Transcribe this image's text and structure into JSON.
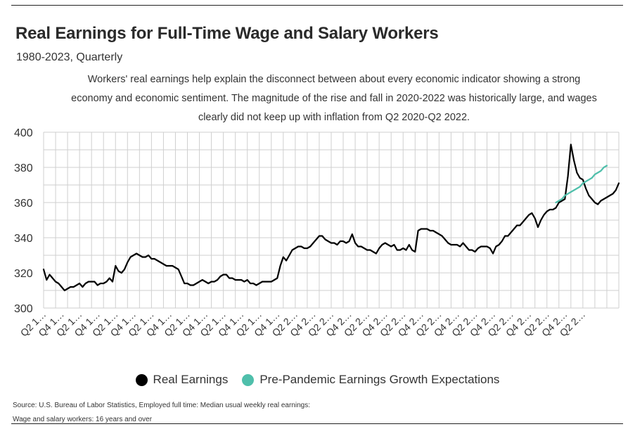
{
  "title": "Real Earnings for Full-Time Wage and Salary Workers",
  "subtitle": "1980-2023, Quarterly",
  "description": "Workers' real earnings help explain the disconnect between about every economic indicator showing a strong economy and economic sentiment. The magnitude of the rise and fall in 2020-2022 was historically large, and wages clearly did not keep up with inflation from Q2 2020-Q2 2022.",
  "source": "Source:  U.S. Bureau of Labor Statistics, Employed full time: Median usual weekly real earnings: Wage and salary workers: 16 years and over",
  "colors": {
    "real_earnings": "#000000",
    "expectations": "#4fbfab",
    "grid": "#cfcfcf"
  },
  "chart_data": {
    "type": "line",
    "x_start": "Q1 1979",
    "x_unit": "quarter",
    "ylim": [
      300,
      400
    ],
    "yticks": [
      300,
      320,
      340,
      360,
      380,
      400
    ],
    "x_tick_labels": [
      "Q2 1…",
      "Q4 1…",
      "Q2 1…",
      "Q4 1…",
      "Q2 1…",
      "Q4 1…",
      "Q2 1…",
      "Q4 1…",
      "Q2 1…",
      "Q4 1…",
      "Q2 1…",
      "Q4 1…",
      "Q2 1…",
      "Q4 1…",
      "Q2 2…",
      "Q4 2…",
      "Q2 2…",
      "Q4 2…",
      "Q2 2…",
      "Q4 2…",
      "Q2 2…",
      "Q4 2…",
      "Q2 2…",
      "Q4 2…",
      "Q2 2…",
      "Q4 2…",
      "Q2 2…",
      "Q4 2…",
      "Q2 2…",
      "Q4 2…",
      "Q2 2…"
    ],
    "grid": true,
    "legend_position": "bottom",
    "series": [
      {
        "name": "Real Earnings",
        "values": [
          322,
          316,
          319,
          317,
          315,
          314,
          312,
          310,
          311,
          312,
          312,
          313,
          314,
          312,
          314,
          315,
          315,
          315,
          313,
          314,
          314,
          315,
          317,
          315,
          324,
          321,
          320,
          322,
          326,
          329,
          330,
          331,
          330,
          329,
          329,
          330,
          328,
          328,
          327,
          326,
          325,
          324,
          324,
          324,
          323,
          322,
          318,
          314,
          314,
          313,
          313,
          314,
          315,
          316,
          315,
          314,
          315,
          315,
          316,
          318,
          319,
          319,
          317,
          317,
          316,
          316,
          316,
          315,
          316,
          314,
          314,
          313,
          314,
          315,
          315,
          315,
          315,
          316,
          317,
          324,
          329,
          327,
          330,
          333,
          334,
          335,
          335,
          334,
          334,
          335,
          337,
          339,
          341,
          341,
          339,
          338,
          337,
          337,
          336,
          338,
          338,
          337,
          338,
          342,
          337,
          335,
          335,
          334,
          333,
          333,
          332,
          331,
          334,
          336,
          337,
          336,
          335,
          336,
          333,
          333,
          334,
          333,
          336,
          333,
          332,
          344,
          345,
          345,
          345,
          344,
          344,
          343,
          342,
          341,
          339,
          337,
          336,
          336,
          336,
          335,
          337,
          335,
          333,
          333,
          332,
          334,
          335,
          335,
          335,
          334,
          331,
          335,
          336,
          338,
          341,
          341,
          343,
          345,
          347,
          347,
          349,
          351,
          353,
          354,
          351,
          346,
          350,
          353,
          355,
          356,
          356,
          357,
          360,
          361,
          362,
          375,
          393,
          384,
          377,
          374,
          373,
          368,
          364,
          362,
          360,
          359,
          361,
          362,
          363,
          364,
          365,
          367,
          371
        ]
      },
      {
        "name": "Pre-Pandemic Earnings Growth Expectations",
        "start_index": 171,
        "values": [
          360,
          361,
          362,
          364,
          365,
          366,
          367,
          368,
          369,
          371,
          372,
          373,
          374,
          376,
          377,
          378,
          380,
          381
        ]
      }
    ]
  }
}
